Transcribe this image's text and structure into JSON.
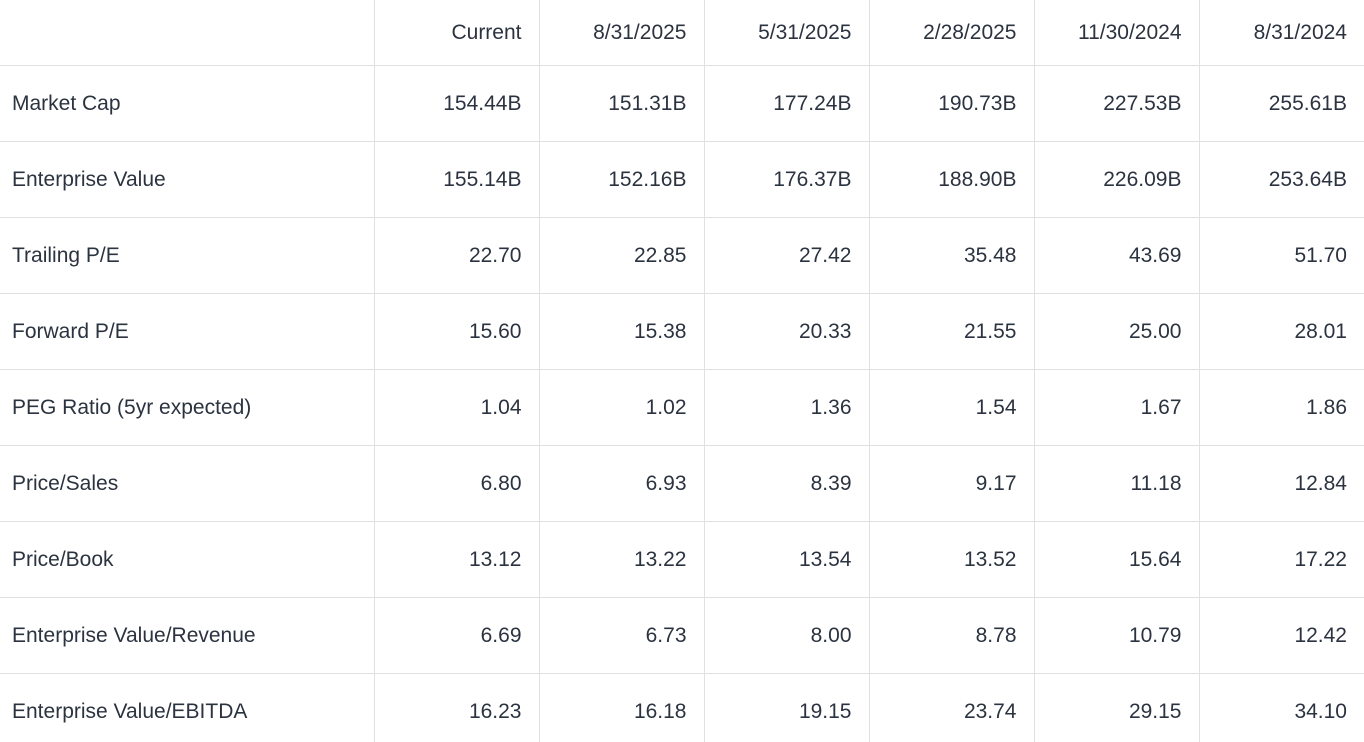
{
  "colors": {
    "background": "#ffffff",
    "text": "#2b3340",
    "border": "#e0e0e3"
  },
  "chart_data": {
    "type": "table",
    "columns": [
      "",
      "Current",
      "8/31/2025",
      "5/31/2025",
      "2/28/2025",
      "11/30/2024",
      "8/31/2024"
    ],
    "rows": [
      {
        "label": "Market Cap",
        "values": [
          "154.44B",
          "151.31B",
          "177.24B",
          "190.73B",
          "227.53B",
          "255.61B"
        ]
      },
      {
        "label": "Enterprise Value",
        "values": [
          "155.14B",
          "152.16B",
          "176.37B",
          "188.90B",
          "226.09B",
          "253.64B"
        ]
      },
      {
        "label": "Trailing P/E",
        "values": [
          "22.70",
          "22.85",
          "27.42",
          "35.48",
          "43.69",
          "51.70"
        ]
      },
      {
        "label": "Forward P/E",
        "values": [
          "15.60",
          "15.38",
          "20.33",
          "21.55",
          "25.00",
          "28.01"
        ]
      },
      {
        "label": "PEG Ratio (5yr expected)",
        "values": [
          "1.04",
          "1.02",
          "1.36",
          "1.54",
          "1.67",
          "1.86"
        ]
      },
      {
        "label": "Price/Sales",
        "values": [
          "6.80",
          "6.93",
          "8.39",
          "9.17",
          "11.18",
          "12.84"
        ]
      },
      {
        "label": "Price/Book",
        "values": [
          "13.12",
          "13.22",
          "13.54",
          "13.52",
          "15.64",
          "17.22"
        ]
      },
      {
        "label": "Enterprise Value/Revenue",
        "values": [
          "6.69",
          "6.73",
          "8.00",
          "8.78",
          "10.79",
          "12.42"
        ]
      },
      {
        "label": "Enterprise Value/EBITDA",
        "values": [
          "16.23",
          "16.18",
          "19.15",
          "23.74",
          "29.15",
          "34.10"
        ]
      }
    ],
    "layout": {
      "grid": "row-and-column-dividers",
      "value_alignment": "right",
      "label_alignment": "left"
    }
  }
}
